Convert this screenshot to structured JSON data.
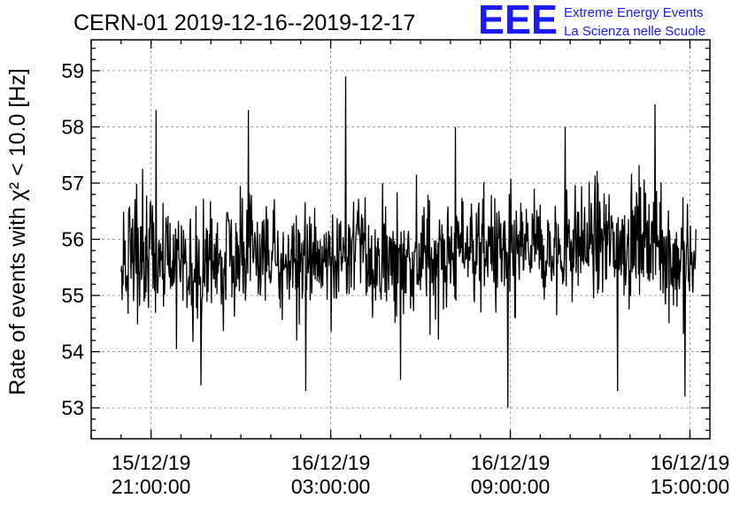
{
  "title": "CERN-01 2019-12-16--2019-12-17",
  "logo": {
    "letters": "EEE",
    "line1": "Extreme Energy Events",
    "line2": "La Scienza nelle Scuole",
    "color": "#1a1aff"
  },
  "chart_data": {
    "type": "line",
    "title": "CERN-01 2019-12-16--2019-12-17",
    "ylabel": "Rate of events with χ² < 10.0 [Hz]",
    "xlabel": "",
    "ylim": [
      52.45,
      59.55
    ],
    "xlim": [
      "2019-12-15 19:00:00",
      "2019-12-16 15:40:00"
    ],
    "grid": true,
    "y_ticks": [
      53,
      54,
      55,
      56,
      57,
      58,
      59
    ],
    "x_ticks": [
      {
        "value": "2019-12-15 21:00:00",
        "label_date": "15/12/19",
        "label_time": "21:00:00"
      },
      {
        "value": "2019-12-16 03:00:00",
        "label_date": "16/12/19",
        "label_time": "03:00:00"
      },
      {
        "value": "2019-12-16 09:00:00",
        "label_date": "16/12/19",
        "label_time": "09:00:00"
      },
      {
        "value": "2019-12-16 15:00:00",
        "label_date": "16/12/19",
        "label_time": "15:00:00"
      }
    ],
    "series": [
      {
        "name": "",
        "color": "#000000",
        "x": [
          "2019-12-15 20:00:00",
          "2019-12-15 20:30:00",
          "2019-12-15 21:00:00",
          "2019-12-15 21:30:00",
          "2019-12-15 22:00:00",
          "2019-12-15 22:30:00",
          "2019-12-15 23:00:00",
          "2019-12-15 23:30:00",
          "2019-12-16 00:00:00",
          "2019-12-16 00:30:00",
          "2019-12-16 01:00:00",
          "2019-12-16 01:30:00",
          "2019-12-16 02:00:00",
          "2019-12-16 02:30:00",
          "2019-12-16 03:00:00",
          "2019-12-16 03:30:00",
          "2019-12-16 04:00:00",
          "2019-12-16 04:30:00",
          "2019-12-16 05:00:00",
          "2019-12-16 05:30:00",
          "2019-12-16 06:00:00",
          "2019-12-16 06:30:00",
          "2019-12-16 07:00:00",
          "2019-12-16 07:30:00",
          "2019-12-16 08:00:00",
          "2019-12-16 08:30:00",
          "2019-12-16 09:00:00",
          "2019-12-16 09:30:00",
          "2019-12-16 10:00:00",
          "2019-12-16 10:30:00",
          "2019-12-16 11:00:00",
          "2019-12-16 11:30:00",
          "2019-12-16 12:00:00",
          "2019-12-16 12:30:00",
          "2019-12-16 13:00:00",
          "2019-12-16 13:30:00",
          "2019-12-16 14:00:00",
          "2019-12-16 14:30:00"
        ],
        "y": [
          55.5,
          55.7,
          55.6,
          55.6,
          55.6,
          55.5,
          55.6,
          55.7,
          55.6,
          55.8,
          55.6,
          55.6,
          55.6,
          55.6,
          55.8,
          55.6,
          55.9,
          55.6,
          55.6,
          55.7,
          55.6,
          55.7,
          55.7,
          55.9,
          55.8,
          55.8,
          55.6,
          55.8,
          55.8,
          55.7,
          56.0,
          55.9,
          56.0,
          55.9,
          56.0,
          56.1,
          56.0,
          55.6
        ]
      }
    ],
    "extremes": {
      "x": [
        "2019-12-15 21:10:00",
        "2019-12-15 22:40:00",
        "2019-12-16 00:15:00",
        "2019-12-16 02:10:00",
        "2019-12-16 03:30:00",
        "2019-12-16 05:20:00",
        "2019-12-16 07:10:00",
        "2019-12-16 08:55:00",
        "2019-12-16 10:50:00",
        "2019-12-16 12:35:00",
        "2019-12-16 13:50:00",
        "2019-12-16 14:50:00"
      ],
      "y": [
        58.3,
        53.4,
        58.3,
        53.3,
        58.9,
        53.5,
        58.0,
        53.0,
        58.0,
        53.3,
        58.4,
        53.2
      ]
    }
  }
}
